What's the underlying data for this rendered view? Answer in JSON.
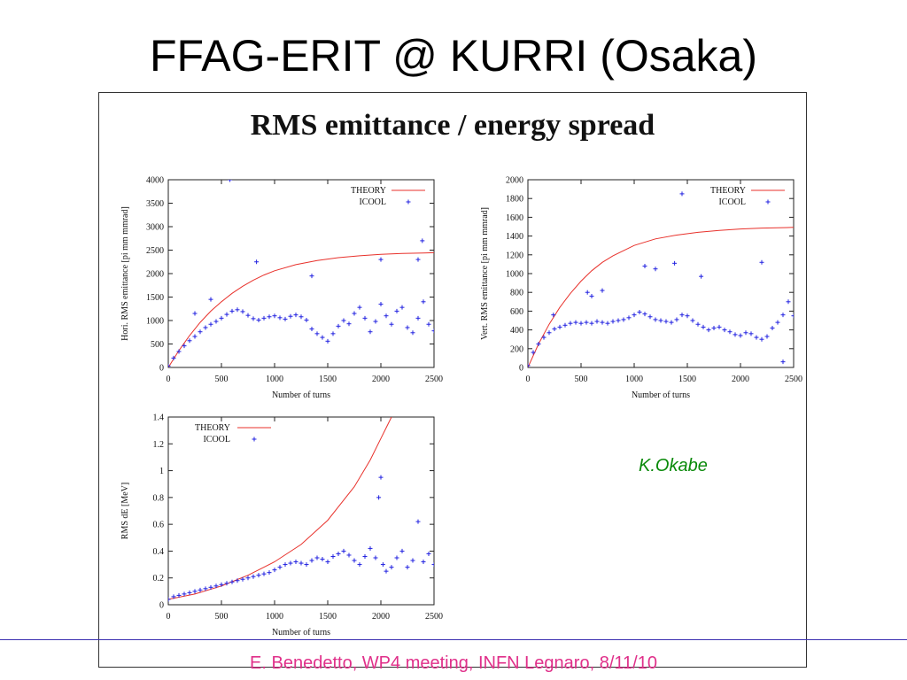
{
  "slide": {
    "title": "FFAG-ERIT @ KURRI (Osaka)",
    "footer": "E. Benedetto, WP4 meeting, INFN Legnaro, 8/11/10",
    "credit": "K.Okabe"
  },
  "figure": {
    "title": "RMS emittance / energy spread"
  },
  "colors": {
    "theory": "#e8312b",
    "icool": "#2222e0",
    "footer_text": "#e0308a",
    "footer_rule": "#3a2fb0",
    "credit": "#0a8a0a"
  },
  "chart_data": [
    {
      "type": "scatter",
      "id": "hori",
      "xlabel": "Number of turns",
      "ylabel": "Hori. RMS emittance [pi mm mmrad]",
      "xlim": [
        0,
        2500
      ],
      "ylim": [
        0,
        4000
      ],
      "xticks": [
        0,
        500,
        1000,
        1500,
        2000,
        2500
      ],
      "yticks": [
        0,
        500,
        1000,
        1500,
        2000,
        2500,
        3000,
        3500,
        4000
      ],
      "legend": "top-right",
      "series": [
        {
          "name": "THEORY",
          "style": "line",
          "x": [
            0,
            100,
            200,
            300,
            400,
            500,
            600,
            700,
            800,
            900,
            1000,
            1200,
            1400,
            1600,
            1800,
            2000,
            2200,
            2400,
            2500
          ],
          "y": [
            0,
            360,
            680,
            960,
            1200,
            1400,
            1580,
            1730,
            1860,
            1970,
            2060,
            2190,
            2280,
            2340,
            2380,
            2410,
            2430,
            2440,
            2445
          ]
        },
        {
          "name": "ICOOL",
          "style": "points",
          "x": [
            0,
            50,
            100,
            150,
            200,
            250,
            300,
            350,
            400,
            450,
            500,
            550,
            600,
            650,
            700,
            750,
            800,
            850,
            900,
            950,
            1000,
            1050,
            1100,
            1150,
            1200,
            1250,
            1300,
            1350,
            1400,
            1450,
            1500,
            1550,
            1600,
            1650,
            1700,
            1750,
            1800,
            1850,
            1900,
            1950,
            2000,
            2050,
            2100,
            2150,
            2200,
            2250,
            2300,
            2350,
            2400,
            2450,
            2500,
            250,
            400,
            580,
            830,
            1350,
            2000,
            2350,
            2390
          ],
          "y": [
            30,
            200,
            340,
            460,
            570,
            660,
            760,
            850,
            920,
            980,
            1050,
            1130,
            1200,
            1230,
            1190,
            1110,
            1040,
            1010,
            1050,
            1080,
            1100,
            1060,
            1030,
            1090,
            1120,
            1080,
            1010,
            820,
            720,
            640,
            560,
            720,
            880,
            1000,
            930,
            1150,
            1280,
            1050,
            760,
            980,
            1350,
            1100,
            920,
            1200,
            1280,
            850,
            740,
            1050,
            1400,
            920,
            780,
            1150,
            1450,
            4000,
            2250,
            1950,
            2300,
            2300,
            2700
          ]
        }
      ]
    },
    {
      "type": "scatter",
      "id": "vert",
      "xlabel": "Number of turns",
      "ylabel": "Vert. RMS emittance [pi mm mmrad]",
      "xlim": [
        0,
        2500
      ],
      "ylim": [
        0,
        2000
      ],
      "xticks": [
        0,
        500,
        1000,
        1500,
        2000,
        2500
      ],
      "yticks": [
        0,
        200,
        400,
        600,
        800,
        1000,
        1200,
        1400,
        1600,
        1800,
        2000
      ],
      "legend": "top-right",
      "series": [
        {
          "name": "THEORY",
          "style": "line",
          "x": [
            0,
            100,
            200,
            300,
            400,
            500,
            600,
            700,
            800,
            1000,
            1200,
            1400,
            1600,
            1800,
            2000,
            2200,
            2400,
            2500
          ],
          "y": [
            0,
            250,
            460,
            640,
            790,
            920,
            1030,
            1120,
            1190,
            1300,
            1370,
            1410,
            1440,
            1460,
            1475,
            1485,
            1490,
            1492
          ]
        },
        {
          "name": "ICOOL",
          "style": "points",
          "x": [
            0,
            50,
            100,
            150,
            200,
            250,
            300,
            350,
            400,
            450,
            500,
            550,
            600,
            650,
            700,
            750,
            800,
            850,
            900,
            950,
            1000,
            1050,
            1100,
            1150,
            1200,
            1250,
            1300,
            1350,
            1400,
            1450,
            1500,
            1550,
            1600,
            1650,
            1700,
            1750,
            1800,
            1850,
            1900,
            1950,
            2000,
            2050,
            2100,
            2150,
            2200,
            2250,
            2300,
            2350,
            2400,
            2450,
            2500,
            240,
            560,
            600,
            700,
            1100,
            1200,
            1380,
            1450,
            1630,
            2200,
            2400
          ],
          "y": [
            20,
            160,
            250,
            320,
            370,
            410,
            430,
            450,
            470,
            480,
            470,
            480,
            470,
            490,
            480,
            470,
            490,
            500,
            510,
            530,
            560,
            590,
            570,
            540,
            510,
            500,
            490,
            480,
            510,
            560,
            550,
            500,
            460,
            430,
            400,
            420,
            430,
            400,
            380,
            350,
            340,
            370,
            360,
            320,
            300,
            330,
            420,
            480,
            560,
            700,
            550,
            560,
            800,
            760,
            820,
            1080,
            1050,
            1110,
            1850,
            970,
            1120,
            60
          ]
        }
      ]
    },
    {
      "type": "scatter",
      "id": "energy",
      "xlabel": "Number of turns",
      "ylabel": "RMS dE [MeV]",
      "xlim": [
        0,
        2500
      ],
      "ylim": [
        0,
        1.4
      ],
      "xticks": [
        0,
        500,
        1000,
        1500,
        2000,
        2500
      ],
      "yticks": [
        0,
        0.2,
        0.4,
        0.6,
        0.8,
        1,
        1.2,
        1.4
      ],
      "legend": "top-left",
      "series": [
        {
          "name": "THEORY",
          "style": "line",
          "x": [
            0,
            250,
            500,
            750,
            1000,
            1250,
            1500,
            1750,
            1900,
            2000,
            2050,
            2100
          ],
          "y": [
            0.04,
            0.08,
            0.14,
            0.22,
            0.32,
            0.45,
            0.63,
            0.88,
            1.08,
            1.24,
            1.32,
            1.4
          ]
        },
        {
          "name": "ICOOL",
          "style": "points",
          "x": [
            0,
            50,
            100,
            150,
            200,
            250,
            300,
            350,
            400,
            450,
            500,
            550,
            600,
            650,
            700,
            750,
            800,
            850,
            900,
            950,
            1000,
            1050,
            1100,
            1150,
            1200,
            1250,
            1300,
            1350,
            1400,
            1450,
            1500,
            1550,
            1600,
            1650,
            1700,
            1750,
            1800,
            1850,
            1900,
            1950,
            1980,
            2000,
            2020,
            2050,
            2100,
            2150,
            2200,
            2250,
            2300,
            2350,
            2400,
            2450,
            2500
          ],
          "y": [
            0.04,
            0.06,
            0.07,
            0.08,
            0.09,
            0.1,
            0.11,
            0.12,
            0.13,
            0.14,
            0.15,
            0.16,
            0.17,
            0.18,
            0.19,
            0.2,
            0.21,
            0.22,
            0.23,
            0.24,
            0.26,
            0.28,
            0.3,
            0.31,
            0.32,
            0.31,
            0.3,
            0.33,
            0.35,
            0.34,
            0.32,
            0.36,
            0.38,
            0.4,
            0.37,
            0.33,
            0.3,
            0.36,
            0.42,
            0.35,
            0.8,
            0.95,
            0.3,
            0.25,
            0.28,
            0.35,
            0.4,
            0.28,
            0.33,
            0.62,
            0.32,
            0.38,
            0.3
          ]
        }
      ]
    }
  ]
}
